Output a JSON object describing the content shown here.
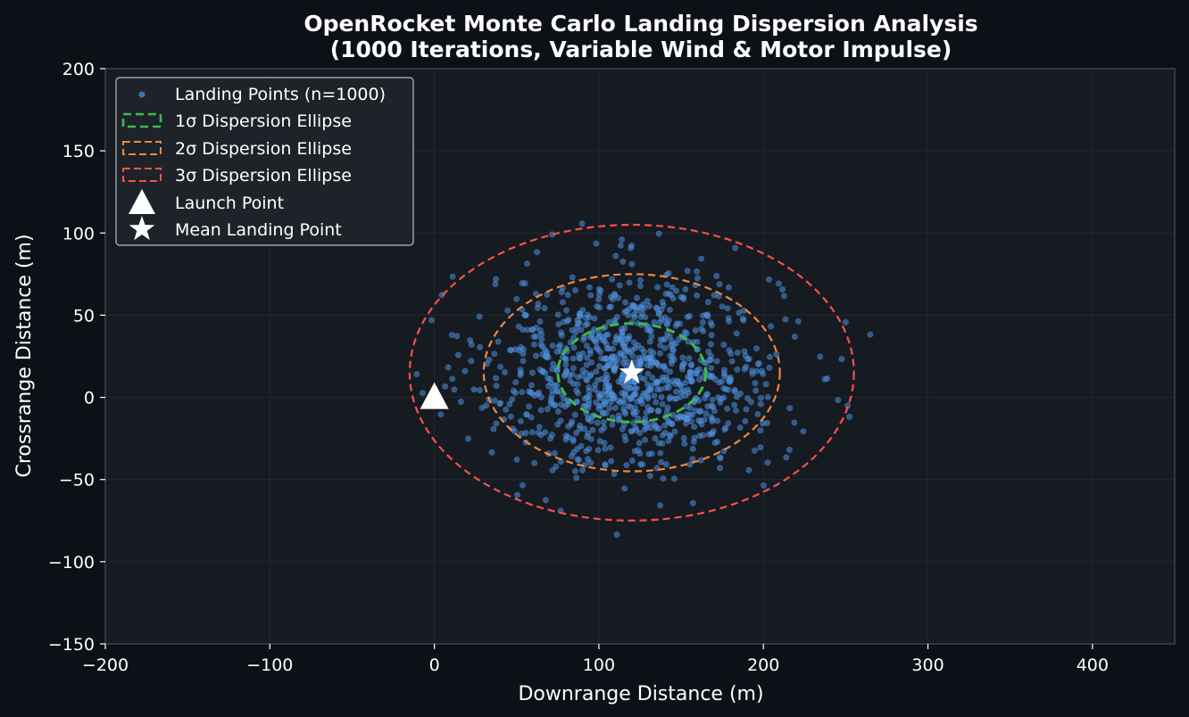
{
  "chart_data": {
    "type": "scatter",
    "title_line1": "OpenRocket Monte Carlo Landing Dispersion Analysis",
    "title_line2": "(1000 Iterations, Variable Wind & Motor Impulse)",
    "xlabel": "Downrange Distance (m)",
    "ylabel": "Crossrange Distance (m)",
    "xlim": [
      -200,
      450
    ],
    "ylim": [
      -150,
      200
    ],
    "xticks": [
      -200,
      -100,
      0,
      100,
      200,
      300,
      400
    ],
    "yticks": [
      -150,
      -100,
      -50,
      0,
      50,
      100,
      150,
      200
    ],
    "xtick_labels": [
      "−200",
      "−100",
      "0",
      "100",
      "200",
      "300",
      "400"
    ],
    "ytick_labels": [
      "−150",
      "−100",
      "−50",
      "0",
      "50",
      "100",
      "150",
      "200"
    ],
    "grid": true,
    "legend_position": "top-left",
    "legend": [
      {
        "key": "points",
        "label": "Landing Points (n=1000)"
      },
      {
        "key": "sigma1",
        "label": "1σ Dispersion Ellipse"
      },
      {
        "key": "sigma2",
        "label": "2σ Dispersion Ellipse"
      },
      {
        "key": "sigma3",
        "label": "3σ Dispersion Ellipse"
      },
      {
        "key": "launch",
        "label": "Launch Point"
      },
      {
        "key": "mean",
        "label": "Mean Landing Point"
      }
    ],
    "landing_points": {
      "count": 1000,
      "mean": [
        120,
        15
      ],
      "std": [
        45,
        30
      ],
      "color": "#4a8fe0"
    },
    "ellipses": [
      {
        "name": "1σ",
        "center": [
          120,
          15
        ],
        "semi_x": 45,
        "semi_y": 30,
        "color": "#3fb950"
      },
      {
        "name": "2σ",
        "center": [
          120,
          15
        ],
        "semi_x": 90,
        "semi_y": 60,
        "color": "#f0883e"
      },
      {
        "name": "3σ",
        "center": [
          120,
          15
        ],
        "semi_x": 135,
        "semi_y": 90,
        "color": "#f85149"
      }
    ],
    "launch_point": [
      0,
      0
    ],
    "mean_landing_point": [
      120,
      15
    ],
    "colors": {
      "background": "#0d1117",
      "plot_background": "#161b22",
      "text": "#ffffff",
      "axis": "#4a4f57",
      "grid": "#232830"
    }
  }
}
